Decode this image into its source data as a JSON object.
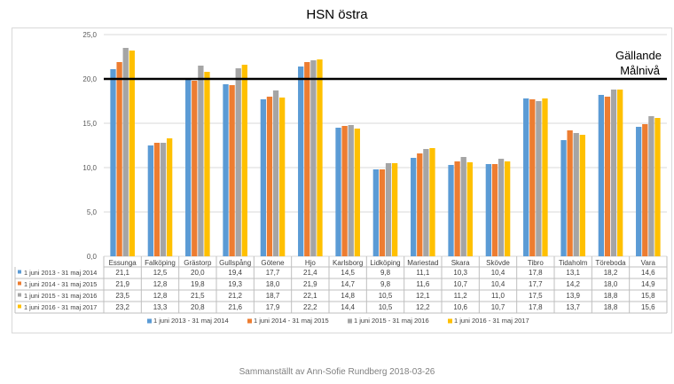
{
  "title": "HSN östra",
  "footer": "Sammanställt av Ann-Sofie Rundberg 2018-03-26",
  "target_label": [
    "Gällande",
    "Målnivå"
  ],
  "chart_data": {
    "type": "bar",
    "title": "HSN östra",
    "categories": [
      "Essunga",
      "Falköping",
      "Grästorp",
      "Gullspång",
      "Götene",
      "Hjo",
      "Karlsborg",
      "Lidköping",
      "Mariestad",
      "Skara",
      "Skövde",
      "Tibro",
      "Tidaholm",
      "Töreboda",
      "Vara"
    ],
    "series": [
      {
        "name": "1 juni 2013 - 31 maj 2014",
        "color": "#5b9bd5",
        "values": [
          21.1,
          12.5,
          20.0,
          19.4,
          17.7,
          21.4,
          14.5,
          9.8,
          11.1,
          10.3,
          10.4,
          17.8,
          13.1,
          18.2,
          14.6
        ]
      },
      {
        "name": "1 juni 2014 - 31 maj 2015",
        "color": "#ed7d31",
        "values": [
          21.9,
          12.8,
          19.8,
          19.3,
          18.0,
          21.9,
          14.7,
          9.8,
          11.6,
          10.7,
          10.4,
          17.7,
          14.2,
          18.0,
          14.9
        ]
      },
      {
        "name": "1 juni 2015 - 31 maj 2016",
        "color": "#a5a5a5",
        "values": [
          23.5,
          12.8,
          21.5,
          21.2,
          18.7,
          22.1,
          14.8,
          10.5,
          12.1,
          11.2,
          11.0,
          17.5,
          13.9,
          18.8,
          15.8
        ]
      },
      {
        "name": "1 juni 2016 - 31 maj 2017",
        "color": "#ffc000",
        "values": [
          23.2,
          13.3,
          20.8,
          21.6,
          17.9,
          22.2,
          14.4,
          10.5,
          12.2,
          10.6,
          10.7,
          17.8,
          13.7,
          18.8,
          15.6
        ]
      }
    ],
    "ylim": [
      0,
      25
    ],
    "yticks": [
      "0,0",
      "5,0",
      "10,0",
      "15,0",
      "20,0",
      "25,0"
    ],
    "target_value": 20,
    "grid": true,
    "legend": "bottom",
    "data_table": true
  }
}
